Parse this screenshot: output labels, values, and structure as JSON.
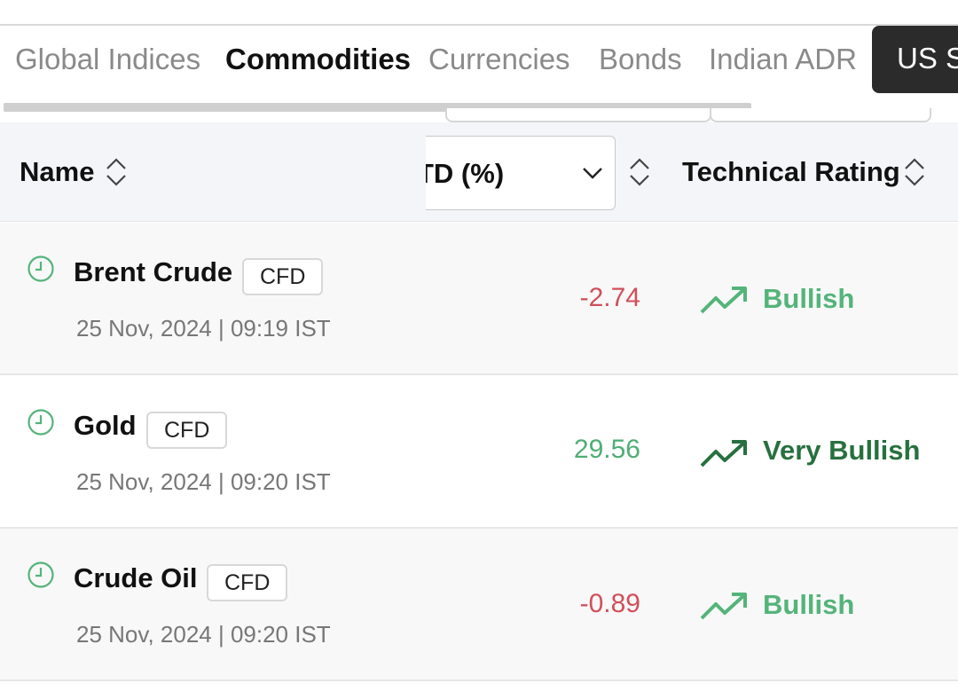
{
  "tabs": [
    {
      "label": "Global Indices",
      "active": false
    },
    {
      "label": "Commodities",
      "active": true
    },
    {
      "label": "Currencies",
      "active": false
    },
    {
      "label": "Bonds",
      "active": false
    },
    {
      "label": "Indian ADR",
      "active": false
    },
    {
      "label": "US St",
      "active": false
    }
  ],
  "table": {
    "headers": {
      "name": "Name",
      "change_column": "YTD (%)",
      "change_column_visible": "TD (%)",
      "rating": "Technical Rating"
    },
    "rows": [
      {
        "name": "Brent Crude",
        "badge": "CFD",
        "timestamp": "25 Nov, 2024 | 09:19 IST",
        "change": "-2.74",
        "rating": "Bullish"
      },
      {
        "name": "Gold",
        "badge": "CFD",
        "timestamp": "25 Nov, 2024 | 09:20 IST",
        "change": "29.56",
        "rating": "Very Bullish"
      },
      {
        "name": "Crude Oil",
        "badge": "CFD",
        "timestamp": "25 Nov, 2024 | 09:20 IST",
        "change": "-0.89",
        "rating": "Bullish"
      }
    ]
  },
  "colors": {
    "negative": "#d0505a",
    "positive": "#4fae74",
    "bullish": "#54b47a",
    "very_bullish": "#27703f",
    "active_tab_bg": "#2b2b2b"
  },
  "icons": {
    "sort": "sort-updown-icon",
    "dropdown": "chevron-down-icon",
    "clock": "clock-icon",
    "trend": "trending-up-icon"
  }
}
